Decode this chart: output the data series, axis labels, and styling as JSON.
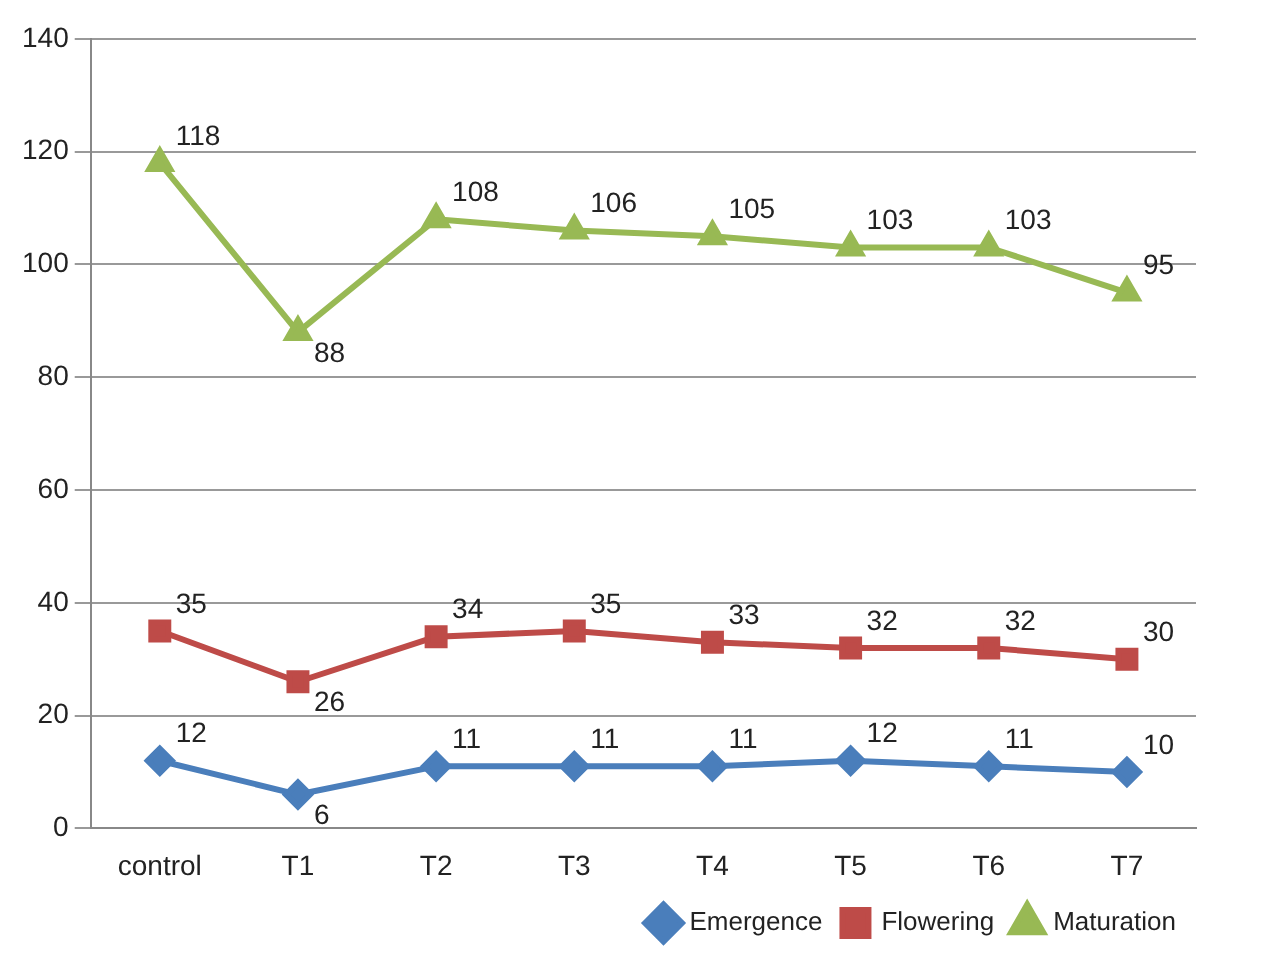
{
  "chart_data": {
    "type": "line",
    "categories": [
      "control",
      "T1",
      "T2",
      "T3",
      "T4",
      "T5",
      "T6",
      "T7"
    ],
    "series": [
      {
        "name": "Emergence",
        "color": "#4a7ebb",
        "marker": "diamond",
        "values": [
          12,
          6,
          11,
          11,
          11,
          12,
          11,
          10
        ]
      },
      {
        "name": "Flowering",
        "color": "#be4b48",
        "marker": "square",
        "values": [
          35,
          26,
          34,
          35,
          33,
          32,
          32,
          30
        ]
      },
      {
        "name": "Maturation",
        "color": "#98b954",
        "marker": "triangle",
        "values": [
          118,
          88,
          108,
          106,
          105,
          103,
          103,
          95
        ]
      }
    ],
    "ylim": [
      0,
      140
    ],
    "yticks": [
      0,
      20,
      40,
      60,
      80,
      100,
      120,
      140
    ],
    "grid": "y",
    "legend": "bottom right",
    "data_labels": true,
    "line_style": "solid"
  }
}
